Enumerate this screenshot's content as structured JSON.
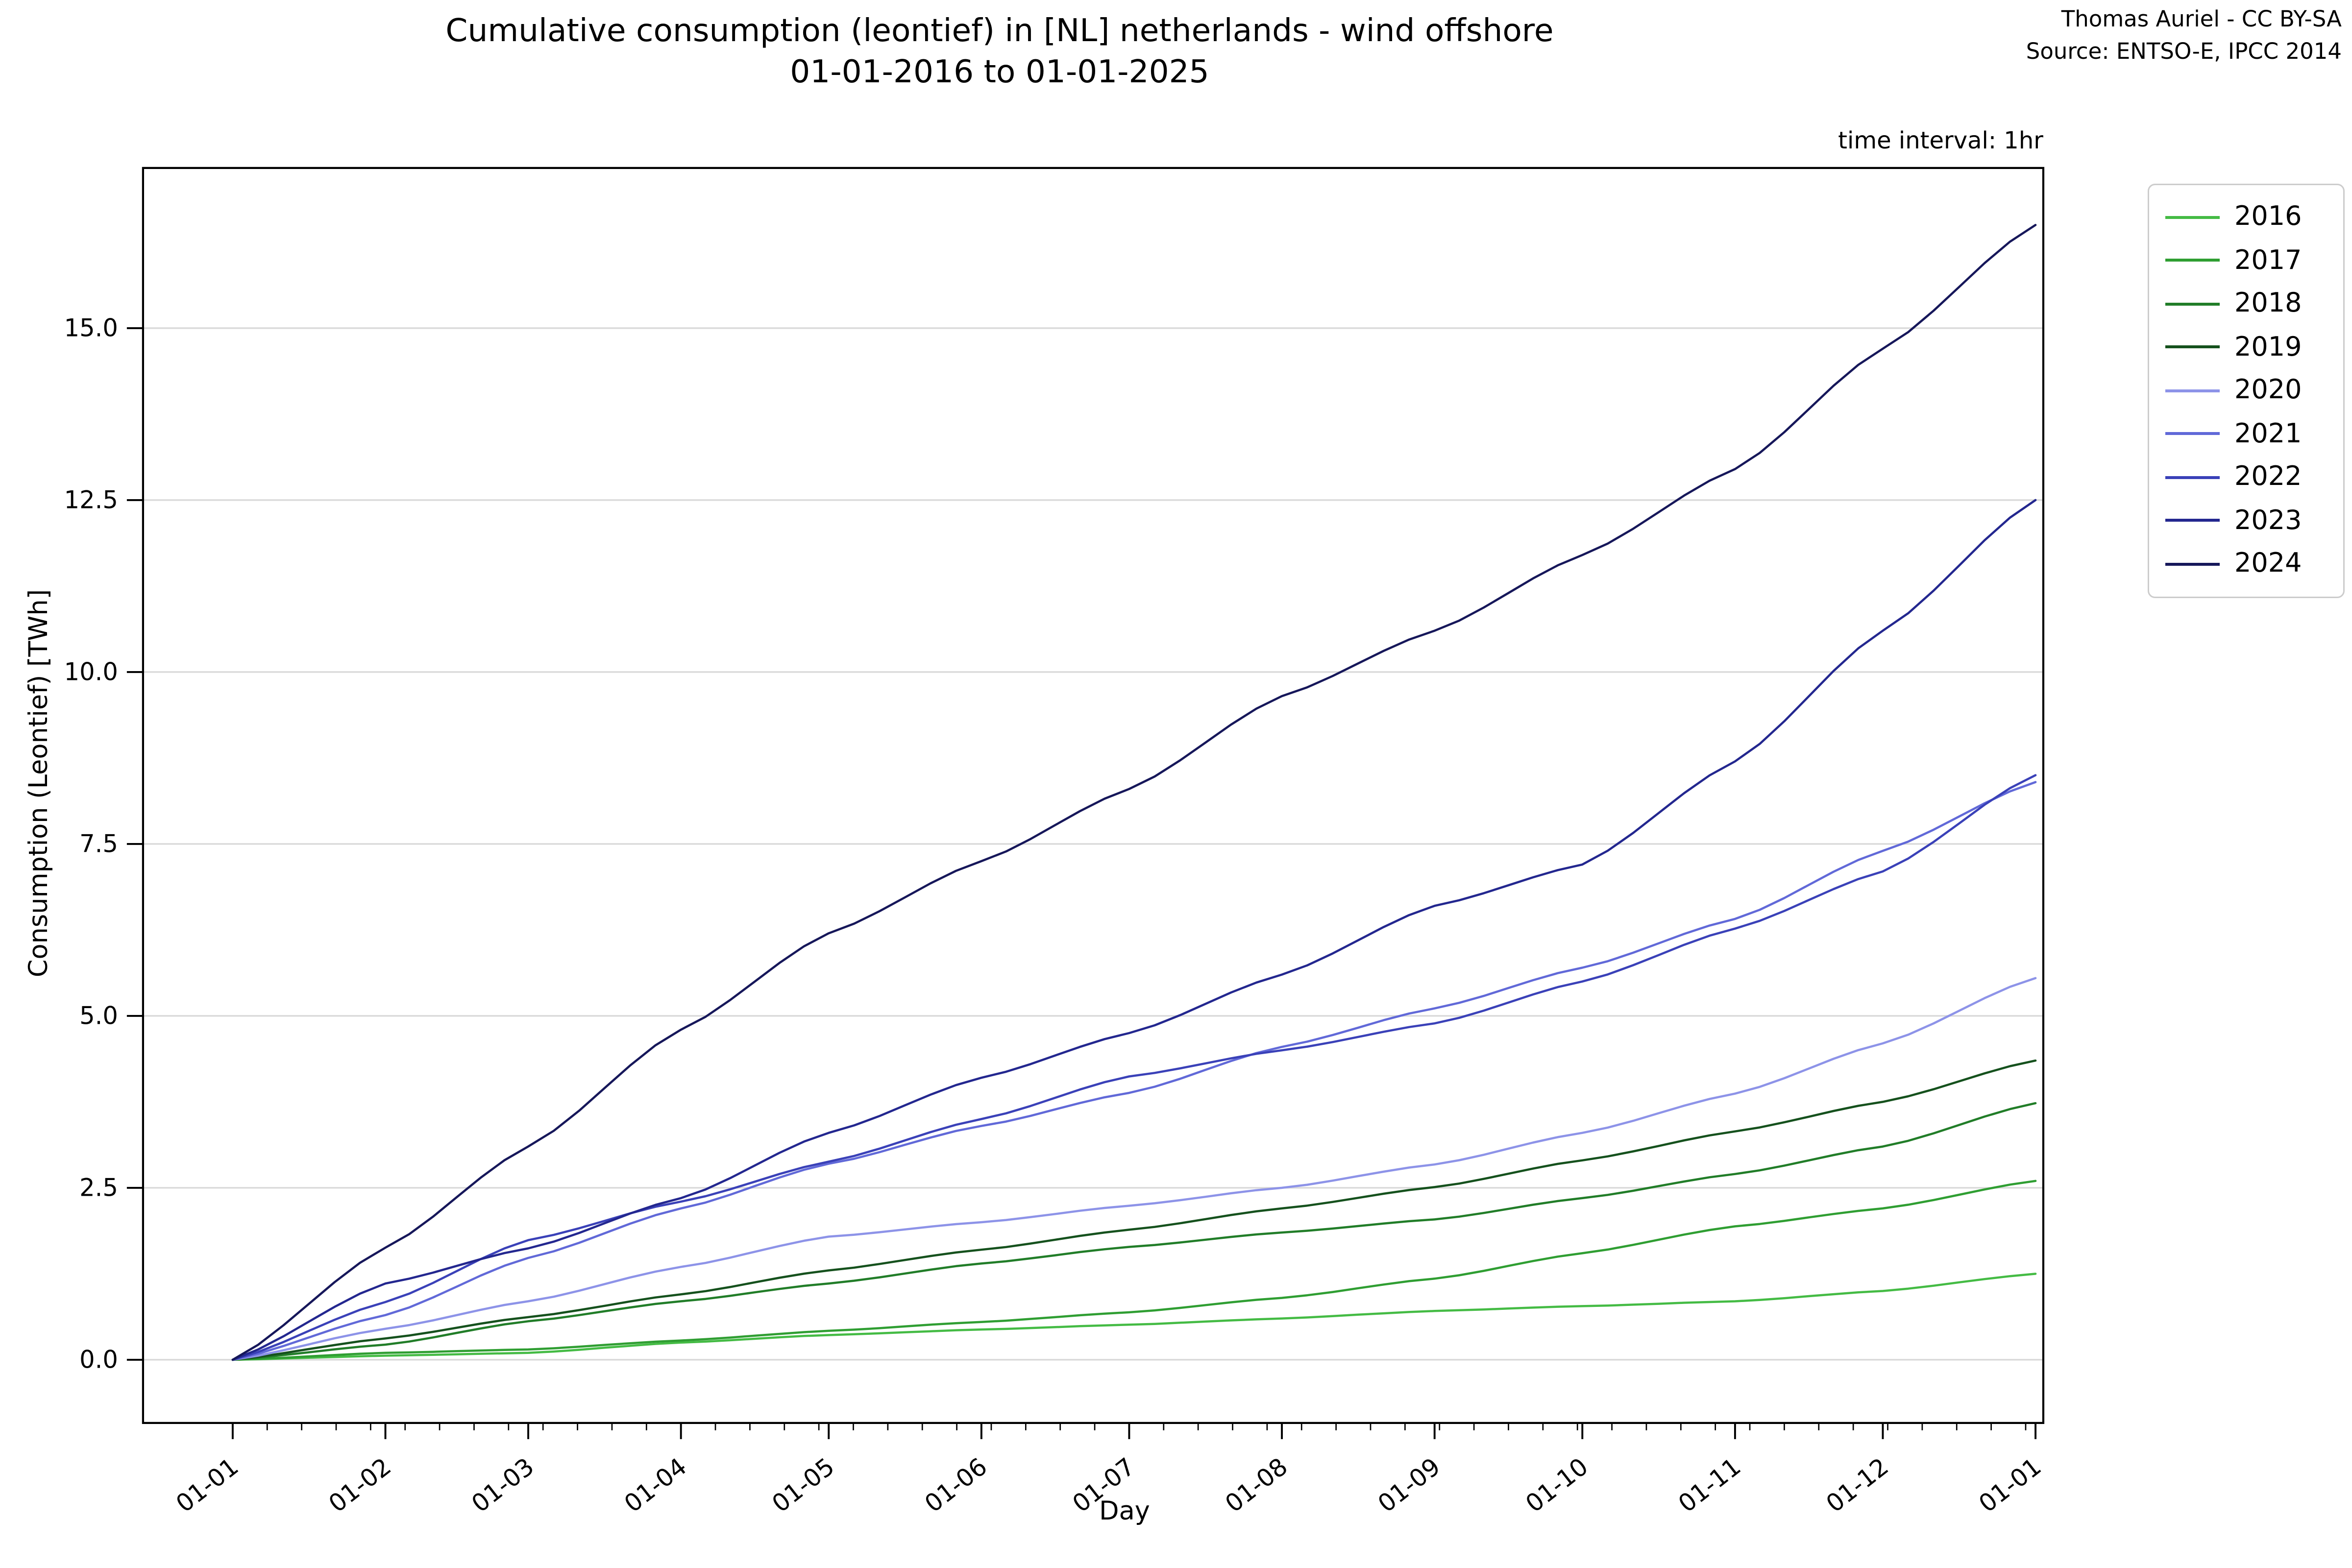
{
  "title": {
    "line1": "Cumulative consumption (leontief) in [NL] netherlands - wind offshore",
    "line2": "01-01-2016 to 01-01-2025"
  },
  "attribution": {
    "line1": "Thomas Auriel - CC BY-SA",
    "line2": "Source: ENTSO-E, IPCC 2014"
  },
  "notes": {
    "time_interval": "time interval: 1hr"
  },
  "chart_data": {
    "type": "line",
    "title": "Cumulative consumption (leontief) in [NL] netherlands - wind offshore 01-01-2016 to 01-01-2025",
    "xlabel": "Day",
    "ylabel": "Consumption (Leontief) [TWh]",
    "x_tick_labels": [
      "01-01",
      "01-02",
      "01-03",
      "01-04",
      "01-05",
      "01-06",
      "01-07",
      "01-08",
      "01-09",
      "01-10",
      "01-11",
      "01-12",
      "01-01"
    ],
    "y_tick_labels": [
      "0.0",
      "2.5",
      "5.0",
      "7.5",
      "10.0",
      "12.5",
      "15.0"
    ],
    "y_tick_values": [
      0,
      2.5,
      5,
      7.5,
      10,
      12.5,
      15
    ],
    "month_start_days": [
      0,
      31,
      60,
      91,
      121,
      152,
      182,
      213,
      244,
      274,
      305,
      335,
      366
    ],
    "xlim_days": [
      0,
      366
    ],
    "ylim": [
      0,
      17.33
    ],
    "grid": "horizontal-only",
    "grid_color": "#d9d9d9",
    "axes_color": "#000000",
    "minor_tick_interval_days": 7,
    "legend_position": "outside-upper-right",
    "series": [
      {
        "name": "2016",
        "color": "#44bb44",
        "values": [
          0,
          0.06,
          0.1,
          0.25,
          0.36,
          0.44,
          0.51,
          0.6,
          0.71,
          0.78,
          0.85,
          1.0,
          1.25
        ]
      },
      {
        "name": "2017",
        "color": "#2f9e32",
        "values": [
          0,
          0.1,
          0.15,
          0.28,
          0.42,
          0.55,
          0.69,
          0.9,
          1.18,
          1.55,
          1.94,
          2.2,
          2.6
        ]
      },
      {
        "name": "2018",
        "color": "#217d28",
        "values": [
          0,
          0.22,
          0.56,
          0.85,
          1.11,
          1.4,
          1.64,
          1.85,
          2.04,
          2.35,
          2.7,
          3.1,
          3.73
        ]
      },
      {
        "name": "2019",
        "color": "#15511d",
        "values": [
          0,
          0.31,
          0.62,
          0.95,
          1.3,
          1.6,
          1.89,
          2.2,
          2.51,
          2.9,
          3.32,
          3.75,
          4.35
        ]
      },
      {
        "name": "2020",
        "color": "#8d93e8",
        "values": [
          0,
          0.45,
          0.85,
          1.35,
          1.79,
          2.0,
          2.24,
          2.5,
          2.84,
          3.3,
          3.87,
          4.6,
          5.55
        ]
      },
      {
        "name": "2021",
        "color": "#6169d8",
        "values": [
          0,
          0.65,
          1.48,
          2.2,
          2.85,
          3.4,
          3.88,
          4.55,
          5.11,
          5.7,
          6.41,
          7.4,
          8.4
        ]
      },
      {
        "name": "2022",
        "color": "#3a41b8",
        "values": [
          0,
          0.84,
          1.74,
          2.3,
          2.88,
          3.5,
          4.12,
          4.5,
          4.89,
          5.5,
          6.27,
          7.1,
          8.5
        ]
      },
      {
        "name": "2023",
        "color": "#23278f",
        "values": [
          0,
          1.11,
          1.62,
          2.35,
          3.3,
          4.1,
          4.75,
          5.6,
          6.6,
          7.2,
          8.7,
          10.6,
          12.5
        ]
      },
      {
        "name": "2024",
        "color": "#16175a",
        "values": [
          0,
          1.63,
          3.1,
          4.8,
          6.2,
          7.25,
          8.3,
          9.65,
          10.6,
          11.7,
          12.95,
          14.7,
          16.5
        ]
      }
    ]
  }
}
